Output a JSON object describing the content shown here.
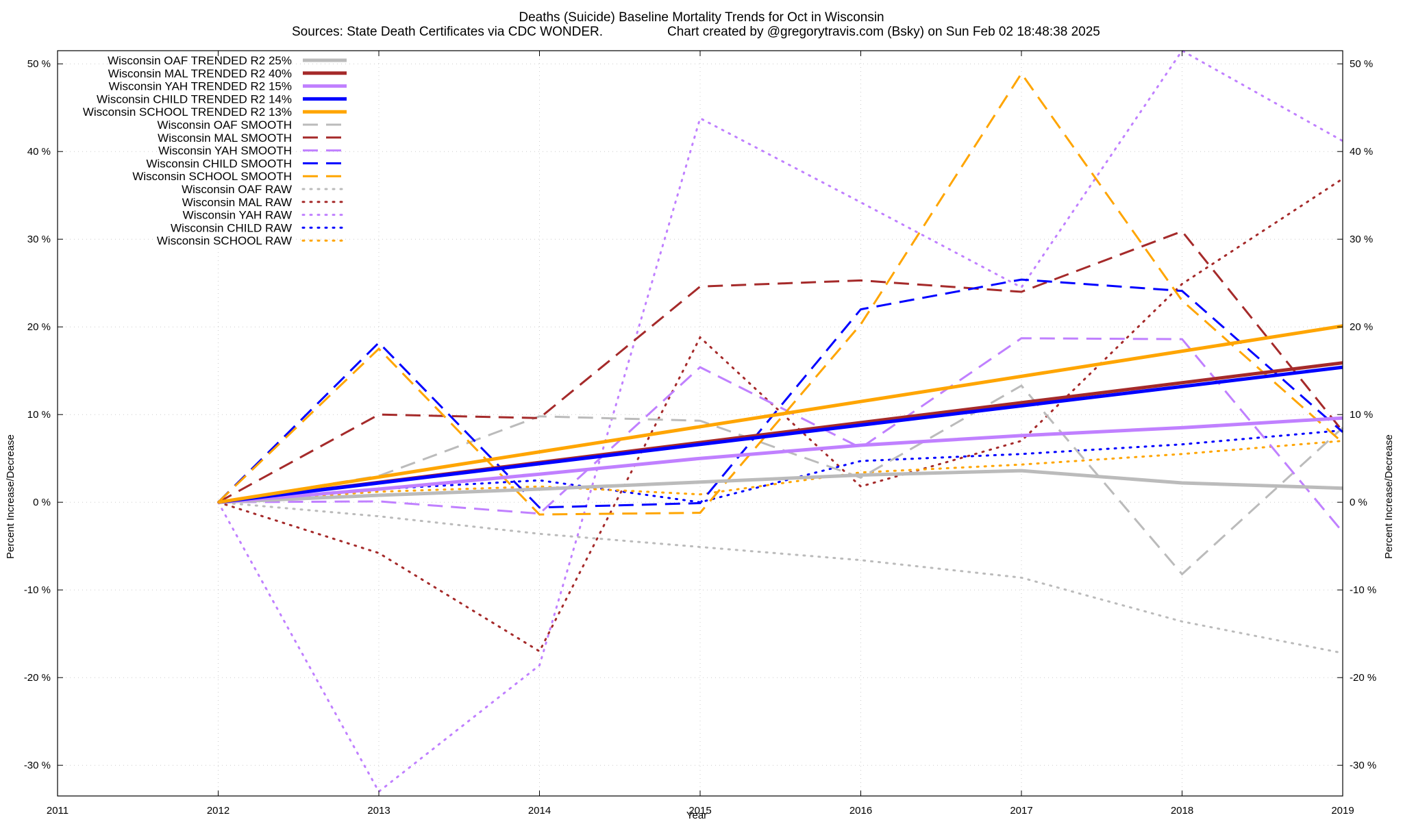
{
  "chart_data": {
    "type": "line",
    "title": "Deaths (Suicide)  Baseline Mortality Trends for Oct in Wisconsin",
    "subtitle_left": "Sources: State Death Certificates via CDC WONDER.",
    "subtitle_right": "Chart created by @gregorytravis.com (Bsky) on Sun Feb 02 18:48:38 2025",
    "xlabel": "Year",
    "ylabel": "Percent Increase/Decrease",
    "xlim": [
      2011,
      2019
    ],
    "ylim": [
      -33.5,
      51.5
    ],
    "x_ticks": [
      2011,
      2012,
      2013,
      2014,
      2015,
      2016,
      2017,
      2018,
      2019
    ],
    "x_tick_labels": [
      "2011",
      "2012",
      "2013",
      "2014",
      "2015",
      "2016",
      "2017",
      "2018",
      "2019"
    ],
    "y_ticks": [
      -30,
      -20,
      -10,
      0,
      10,
      20,
      30,
      40,
      50
    ],
    "y_tick_labels": [
      "-30 %",
      "-20 %",
      "-10 %",
      "0 %",
      "10 %",
      "20 %",
      "30 %",
      "40 %",
      "50 %"
    ],
    "grid": true,
    "legend_position": "top-left",
    "series": [
      {
        "name": "Wisconsin OAF TRENDED R2  25%",
        "color": "#bbbbbb",
        "style": "solid",
        "x": [
          2012,
          2013,
          2014,
          2015,
          2016,
          2017,
          2018,
          2019
        ],
        "values": [
          0,
          0.8,
          1.5,
          2.3,
          3.1,
          3.6,
          2.2,
          1.6
        ]
      },
      {
        "name": "Wisconsin MAL TRENDED R2  40%",
        "color": "#a52a2a",
        "style": "solid",
        "x": [
          2012,
          2019
        ],
        "values": [
          0,
          15.9
        ]
      },
      {
        "name": "Wisconsin YAH TRENDED R2  15%",
        "color": "#c080ff",
        "style": "solid",
        "x": [
          2012,
          2013,
          2014,
          2015,
          2016,
          2017,
          2018,
          2019
        ],
        "values": [
          0,
          1.5,
          3.2,
          5.0,
          6.5,
          7.6,
          8.5,
          9.6
        ]
      },
      {
        "name": "Wisconsin CHILD TRENDED R2  14%",
        "color": "#0000ff",
        "style": "solid",
        "x": [
          2012,
          2019
        ],
        "values": [
          0,
          15.4
        ]
      },
      {
        "name": "Wisconsin SCHOOL TRENDED R2  13%",
        "color": "#ffa500",
        "style": "solid",
        "x": [
          2012,
          2019
        ],
        "values": [
          0,
          20.1
        ]
      },
      {
        "name": "Wisconsin OAF SMOOTH",
        "color": "#bbbbbb",
        "style": "dashed",
        "x": [
          2012,
          2013,
          2014,
          2015,
          2016,
          2017,
          2018,
          2019
        ],
        "values": [
          0,
          3.0,
          9.8,
          9.3,
          2.8,
          13.3,
          -8.2,
          8.5
        ]
      },
      {
        "name": "Wisconsin MAL SMOOTH",
        "color": "#a52a2a",
        "style": "dashed",
        "x": [
          2012,
          2013,
          2014,
          2015,
          2016,
          2017,
          2018,
          2019
        ],
        "values": [
          0,
          10.0,
          9.6,
          24.6,
          25.3,
          24.0,
          30.9,
          8.1
        ]
      },
      {
        "name": "Wisconsin YAH SMOOTH",
        "color": "#c080ff",
        "style": "dashed",
        "x": [
          2012,
          2013,
          2014,
          2015,
          2016,
          2017,
          2018,
          2019
        ],
        "values": [
          0,
          0.1,
          -1.3,
          15.4,
          6.2,
          18.7,
          18.6,
          -3.4
        ]
      },
      {
        "name": "Wisconsin CHILD SMOOTH",
        "color": "#0000ff",
        "style": "dashed",
        "x": [
          2012,
          2013,
          2014,
          2015,
          2016,
          2017,
          2018,
          2019
        ],
        "values": [
          0,
          18.2,
          -0.6,
          -0.1,
          22.0,
          25.4,
          24.1,
          8.0
        ]
      },
      {
        "name": "Wisconsin SCHOOL SMOOTH",
        "color": "#ffa500",
        "style": "dashed",
        "x": [
          2012,
          2013,
          2014,
          2015,
          2016,
          2017,
          2018,
          2019
        ],
        "values": [
          0,
          17.5,
          -1.4,
          -1.2,
          20.3,
          48.9,
          23.0,
          6.8
        ]
      },
      {
        "name": "Wisconsin OAF RAW",
        "color": "#bbbbbb",
        "style": "dotted",
        "x": [
          2012,
          2013,
          2014,
          2015,
          2016,
          2017,
          2018,
          2019
        ],
        "values": [
          0,
          -1.6,
          -3.6,
          -5.1,
          -6.6,
          -8.6,
          -13.6,
          -17.2
        ]
      },
      {
        "name": "Wisconsin MAL RAW",
        "color": "#a52a2a",
        "style": "dotted",
        "x": [
          2012,
          2013,
          2014,
          2015,
          2016,
          2017,
          2018,
          2019
        ],
        "values": [
          0,
          -5.8,
          -17.0,
          18.8,
          1.8,
          7.0,
          24.9,
          36.9
        ]
      },
      {
        "name": "Wisconsin YAH RAW",
        "color": "#c080ff",
        "style": "dotted",
        "x": [
          2012,
          2013,
          2014,
          2015,
          2016,
          2017,
          2018,
          2019
        ],
        "values": [
          0,
          -33.0,
          -18.6,
          43.8,
          34.2,
          24.5,
          51.5,
          41.2
        ]
      },
      {
        "name": "Wisconsin CHILD RAW",
        "color": "#0000ff",
        "style": "dotted",
        "x": [
          2012,
          2013,
          2014,
          2015,
          2016,
          2017,
          2018,
          2019
        ],
        "values": [
          0,
          1.5,
          2.5,
          0.0,
          4.7,
          5.5,
          6.6,
          8.2
        ]
      },
      {
        "name": "Wisconsin SCHOOL RAW",
        "color": "#ffa500",
        "style": "dotted",
        "x": [
          2012,
          2013,
          2014,
          2015,
          2016,
          2017,
          2018,
          2019
        ],
        "values": [
          0,
          1.2,
          1.8,
          0.9,
          3.4,
          4.3,
          5.5,
          7.0
        ]
      }
    ]
  }
}
